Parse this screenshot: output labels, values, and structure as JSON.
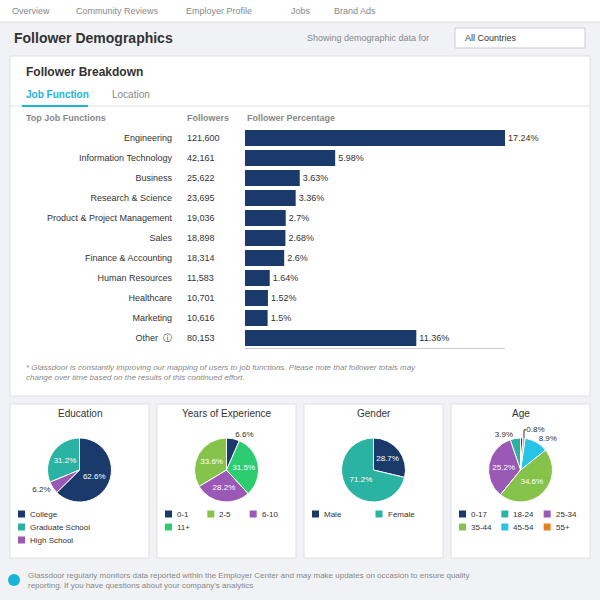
{
  "chart_data": [
    {
      "type": "bar",
      "orientation": "horizontal",
      "title": "Follower Breakdown",
      "annotations": [
        "Overview",
        "Community Reviews",
        "Employer Profile",
        "Jobs",
        "Brand Ads",
        "Follower Demographics",
        "Showing demographic data for",
        "All Countries",
        "Job Function",
        "Location",
        "* Glassdoor is constantly improving our mapping of users to job functions. Please note that follower totals may change over time based on the results of this continued effort.",
        "Glassdoor regularly monitors data reported within the Employer Center and may make updates on occasion to ensure quality reporting. If you have questions about your company's analytics"
      ],
      "ylabel": "Top Job Functions",
      "xlabel": "Follower Percentage",
      "followers_title": "Followers",
      "followers": [
        {
          "value": 121600,
          "label": "121,600"
        },
        {
          "value": 42161,
          "label": "42,161"
        },
        {
          "value": 25622,
          "label": "25,622"
        },
        {
          "value": 23695,
          "label": "23,695"
        },
        {
          "value": 19036,
          "label": "19,036"
        },
        {
          "value": 18898,
          "label": "18,898"
        },
        {
          "value": 18314,
          "label": "18,314"
        },
        {
          "value": 11583,
          "label": "11,583"
        },
        {
          "value": 10701,
          "label": "10,701"
        },
        {
          "value": 10616,
          "label": "10,616"
        },
        {
          "value": 80153,
          "label": "80,153"
        }
      ],
      "categories": [
        "Engineering",
        "Information Technology",
        "Business",
        "Research & Science",
        "Product & Project Management",
        "Sales",
        "Finance & Accounting",
        "Human Resources",
        "Healthcare",
        "Marketing",
        "Other  ⓘ"
      ],
      "values": [
        17.24,
        5.98,
        3.63,
        3.36,
        2.7,
        2.68,
        2.6,
        1.64,
        1.52,
        1.5,
        11.36
      ],
      "value_labels": [
        "17.24%",
        "5.98%",
        "3.63%",
        "3.36%",
        "2.7%",
        "2.68%",
        "2.6%",
        "1.64%",
        "1.52%",
        "1.5%",
        "11.36%"
      ],
      "data_labels": true,
      "color": "#1a3a6b",
      "xlim": [
        0,
        17.24
      ],
      "tick_labels": "y",
      "grid": false
    },
    {
      "type": "pie",
      "title": "Education",
      "categories": [
        "College",
        "Graduate School",
        "High School"
      ],
      "values": [
        62.6,
        31.2,
        6.2
      ],
      "value_labels": [
        "62.6%",
        "31.2%",
        "6.2%"
      ],
      "data_labels": true,
      "colors": [
        "#1a3a6b",
        "#2ab3a3",
        "#9b59b6"
      ],
      "legend": "bottom"
    },
    {
      "type": "pie",
      "title": "Years of Experience",
      "categories": [
        "0-1",
        "2-5",
        "6-10",
        "11+"
      ],
      "values": [
        6.6,
        33.6,
        28.2,
        31.5
      ],
      "value_labels": [
        "6.6%",
        "33.6%",
        "28.2%",
        "31.5%"
      ],
      "data_labels": true,
      "colors": [
        "#1a3a6b",
        "#85c34b",
        "#9b59b6",
        "#2ecc71"
      ],
      "legend": "bottom"
    },
    {
      "type": "pie",
      "title": "Gender",
      "categories": [
        "Male",
        "Female"
      ],
      "values": [
        28.7,
        71.2
      ],
      "value_labels": [
        "28.7%",
        "71.2%"
      ],
      "data_labels": true,
      "colors": [
        "#1a3a6b",
        "#2ab3a3"
      ],
      "legend": "bottom"
    },
    {
      "type": "pie",
      "title": "Age",
      "categories": [
        "0-17",
        "18-24",
        "25-34",
        "35-44",
        "45-54",
        "55+"
      ],
      "values": [
        0.9,
        3.9,
        25.2,
        34.6,
        8.9,
        0.8
      ],
      "value_labels": [
        null,
        "3.9%",
        "25.2%",
        "34.6%",
        "8.9%",
        "0.8%"
      ],
      "data_labels": true,
      "colors": [
        "#1a3a6b",
        "#2ab3a3",
        "#9b59b6",
        "#85c34b",
        "#27c4e8",
        "#e67e22"
      ],
      "legend": "bottom"
    }
  ]
}
